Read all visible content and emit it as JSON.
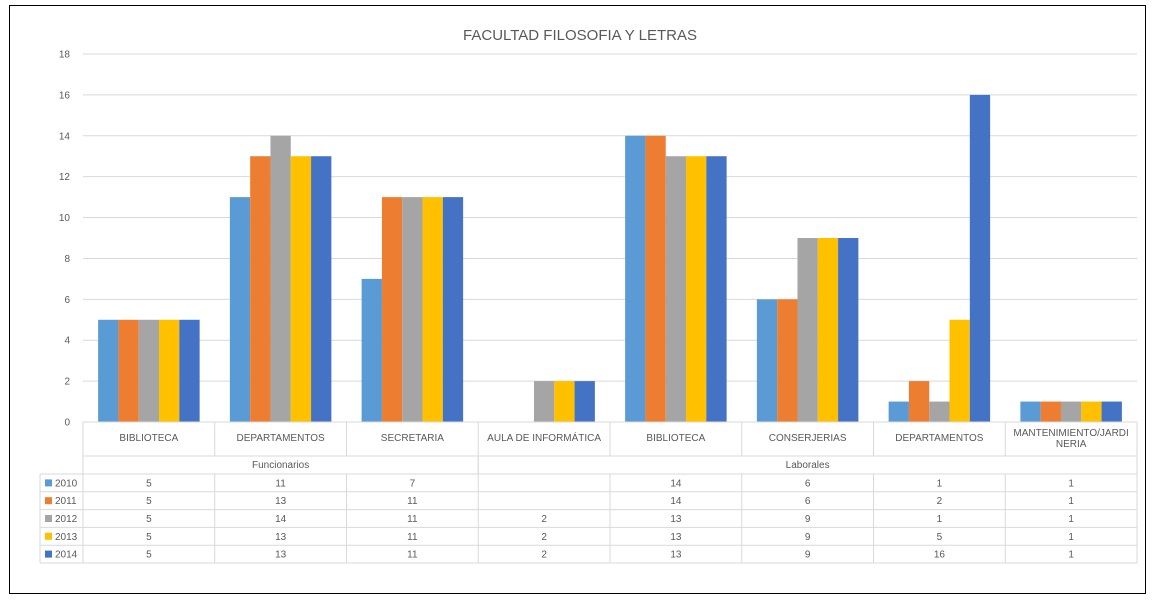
{
  "chart_data": {
    "type": "bar",
    "title": "FACULTAD FILOSOFIA Y LETRAS",
    "ylim": [
      0,
      18
    ],
    "yticks": [
      "0",
      "2",
      "4",
      "6",
      "8",
      "10",
      "12",
      "14",
      "16",
      "18"
    ],
    "grid": true,
    "legend": "data-table",
    "groups": [
      {
        "label": "Funcionarios",
        "span": [
          0,
          2
        ]
      },
      {
        "label": "Laborales",
        "span": [
          3,
          7
        ]
      }
    ],
    "categories": [
      "BIBLIOTECA",
      "DEPARTAMENTOS",
      "SECRETARIA",
      "AULA DE INFORMÁTICA",
      "BIBLIOTECA",
      "CONSERJERIAS",
      "DEPARTAMENTOS",
      "MANTENIMIENTO/JARDINERIA"
    ],
    "category_lines": [
      [
        "BIBLIOTECA"
      ],
      [
        "DEPARTAMENTOS"
      ],
      [
        "SECRETARIA"
      ],
      [
        "AULA DE INFORMÁTICA"
      ],
      [
        "BIBLIOTECA"
      ],
      [
        "CONSERJERIAS"
      ],
      [
        "DEPARTAMENTOS"
      ],
      [
        "MANTENIMIENTO/JARDI",
        "NERIA"
      ]
    ],
    "series": [
      {
        "name": "2010",
        "color": "#5B9BD5",
        "values": [
          5,
          11,
          7,
          null,
          14,
          6,
          1,
          1
        ]
      },
      {
        "name": "2011",
        "color": "#ED7D31",
        "values": [
          5,
          13,
          11,
          null,
          14,
          6,
          2,
          1
        ]
      },
      {
        "name": "2012",
        "color": "#A5A5A5",
        "values": [
          5,
          14,
          11,
          2,
          13,
          9,
          1,
          1
        ]
      },
      {
        "name": "2013",
        "color": "#FFC000",
        "values": [
          5,
          13,
          11,
          2,
          13,
          9,
          5,
          1
        ]
      },
      {
        "name": "2014",
        "color": "#4472C4",
        "values": [
          5,
          13,
          11,
          2,
          13,
          9,
          16,
          1
        ]
      }
    ]
  }
}
